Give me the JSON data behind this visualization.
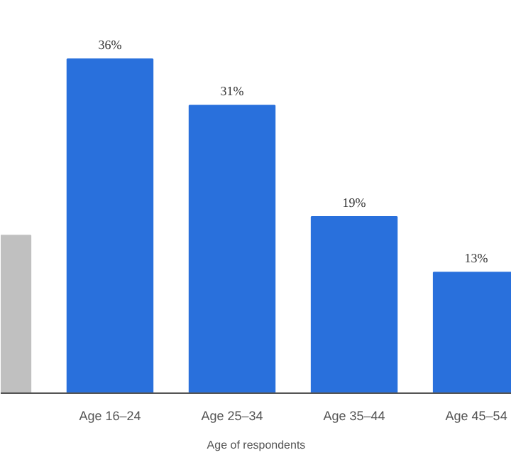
{
  "chart_data": {
    "type": "bar",
    "xlabel": "Age of respondents",
    "categories": [
      null,
      "Age 16–24",
      "Age 25–34",
      "Age 35–44",
      "Age 45–54"
    ],
    "values": [
      17,
      36,
      31,
      19,
      13
    ],
    "colors": [
      "#c0c0c0",
      "#2970dc",
      "#2970dc",
      "#2970dc",
      "#2970dc"
    ],
    "value_labels": [
      null,
      "36%",
      "31%",
      "19%",
      "13%"
    ]
  }
}
